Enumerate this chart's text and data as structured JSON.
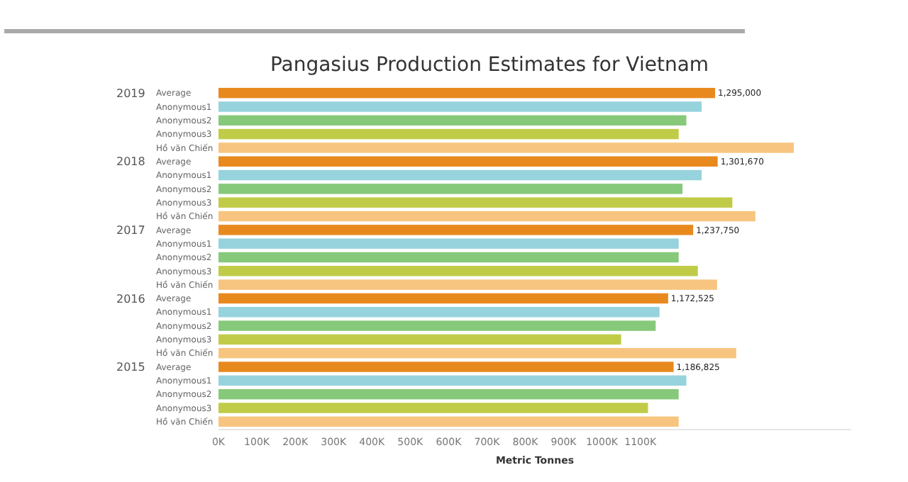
{
  "chart_data": {
    "type": "bar",
    "orientation": "horizontal",
    "title": "Pangasius Production Estimates for Vietnam",
    "xlabel": "Metric Tonnes",
    "categories": [
      "Average",
      "Anonymous1",
      "Anonymous2",
      "Anonymous3",
      "Hồ văn Chiến",
      "Average",
      "Anonymous1",
      "Anonymous2",
      "Anonymous3",
      "Hồ văn Chiến",
      "Average",
      "Anonymous1",
      "Anonymous2",
      "Anonymous3",
      "Hồ văn Chiến",
      "Average",
      "Anonymous1",
      "Anonymous2",
      "Anonymous3",
      "Hồ văn Chiến",
      "Average",
      "Anonymous1",
      "Anonymous2",
      "Anonymous3",
      "Hồ văn Chiến"
    ],
    "values": [
      1295000,
      1260000,
      1220000,
      1200000,
      1500000,
      1301670,
      1260000,
      1210000,
      1340000,
      1400000,
      1237750,
      1200000,
      1200000,
      1250000,
      1300000,
      1172525,
      1150000,
      1140000,
      1050000,
      1350000,
      1186825,
      1220000,
      1200000,
      1120000,
      1200000
    ],
    "colors": [
      "#e8891e",
      "#96d3dc",
      "#86c97a",
      "#c0cc47",
      "#f7c57f",
      "#e8891e",
      "#96d3dc",
      "#86c97a",
      "#c0cc47",
      "#f7c57f",
      "#e8891e",
      "#96d3dc",
      "#86c97a",
      "#c0cc47",
      "#f7c57f",
      "#e8891e",
      "#96d3dc",
      "#86c97a",
      "#c0cc47",
      "#f7c57f",
      "#e8891e",
      "#96d3dc",
      "#86c97a",
      "#c0cc47",
      "#f7c57f"
    ],
    "value_labels": [
      "1,295,000",
      null,
      null,
      null,
      null,
      "1,301,670",
      null,
      null,
      null,
      null,
      "1,237,750",
      null,
      null,
      null,
      null,
      "1,172,525",
      null,
      null,
      null,
      null,
      "1,186,825",
      null,
      null,
      null,
      null
    ],
    "annotations": [
      "2019",
      "2018",
      "2017",
      "2016",
      "2015"
    ],
    "xlim": [
      0,
      1650000
    ],
    "xticks": [
      {
        "value": 0,
        "label": "0K"
      },
      {
        "value": 100000,
        "label": "100K"
      },
      {
        "value": 200000,
        "label": "200K"
      },
      {
        "value": 300000,
        "label": "300K"
      },
      {
        "value": 400000,
        "label": "400K"
      },
      {
        "value": 500000,
        "label": "500K"
      },
      {
        "value": 600000,
        "label": "600K"
      },
      {
        "value": 700000,
        "label": "700K"
      },
      {
        "value": 800000,
        "label": "800K"
      },
      {
        "value": 900000,
        "label": "900K"
      },
      {
        "value": 1000000,
        "label": "1000K"
      },
      {
        "value": 1100000,
        "label": "1100K"
      }
    ],
    "grid": false
  }
}
